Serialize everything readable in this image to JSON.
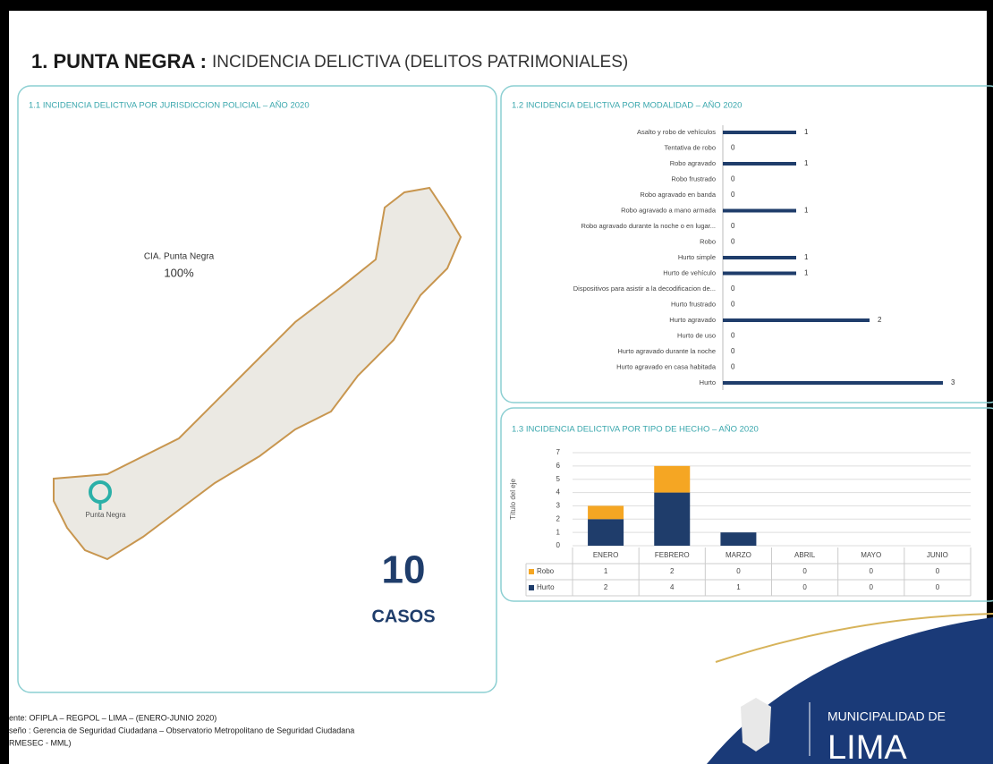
{
  "header": {
    "title_bold": "1. PUNTA NEGRA :",
    "title_rest": "INCIDENCIA DELICTIVA (DELITOS PATRIMONIALES)"
  },
  "map_panel": {
    "title": "1.1 INCIDENCIA DELICTIVA POR JURISDICCION POLICIAL – AÑO 2020",
    "station_label": "CIA. Punta Negra",
    "share": "100%",
    "pin_label": "Punta Negra",
    "total": "10",
    "total_unit": "CASOS"
  },
  "chart_data": [
    {
      "type": "bar",
      "orientation": "horizontal",
      "title": "1.2 INCIDENCIA DELICTIVA POR MODALIDAD – AÑO 2020",
      "categories": [
        "Asalto y robo de vehículos",
        "Tentativa de robo",
        "Robo agravado",
        "Robo frustrado",
        "Robo agravado en banda",
        "Robo agravado a mano armada",
        "Robo agravado durante la noche o en lugar...",
        "Robo",
        "Hurto simple",
        "Hurto de vehículo",
        "Dispositivos para asistir a la decodificacion de...",
        "Hurto frustrado",
        "Hurto agravado",
        "Hurto de uso",
        "Hurto agravado durante la noche",
        "Hurto agravado en casa habitada",
        "Hurto"
      ],
      "values": [
        1,
        0,
        1,
        0,
        0,
        1,
        0,
        0,
        1,
        1,
        0,
        0,
        2,
        0,
        0,
        0,
        3
      ],
      "color": "#1f3d6b",
      "xlim": [
        0,
        3.5
      ]
    },
    {
      "type": "bar",
      "stacked": true,
      "title": "1.3 INCIDENCIA DELICTIVA POR TIPO DE HECHO – AÑO 2020",
      "ylabel": "Título del eje",
      "categories": [
        "ENERO",
        "FEBRERO",
        "MARZO",
        "ABRIL",
        "MAYO",
        "JUNIO"
      ],
      "series": [
        {
          "name": "Hurto",
          "color": "#1f3d6b",
          "values": [
            2,
            4,
            1,
            0,
            0,
            0
          ]
        },
        {
          "name": "Robo",
          "color": "#f5a623",
          "values": [
            1,
            2,
            0,
            0,
            0,
            0
          ]
        }
      ],
      "ylim": [
        0,
        7
      ],
      "yticks": [
        0,
        1,
        2,
        3,
        4,
        5,
        6,
        7
      ],
      "grid": true,
      "data_table": true
    }
  ],
  "footer": {
    "lines": [
      "ente: OFIPLA – REGPOL – LIMA – (ENERO-JUNIO 2020)",
      "seño : Gerencia de Seguridad Ciudadana – Observatorio Metropolitano de Seguridad Ciudadana",
      "RMESEC - MML)"
    ]
  },
  "logo": {
    "line1": "MUNICIPALIDAD DE",
    "line2": "LIMA"
  }
}
